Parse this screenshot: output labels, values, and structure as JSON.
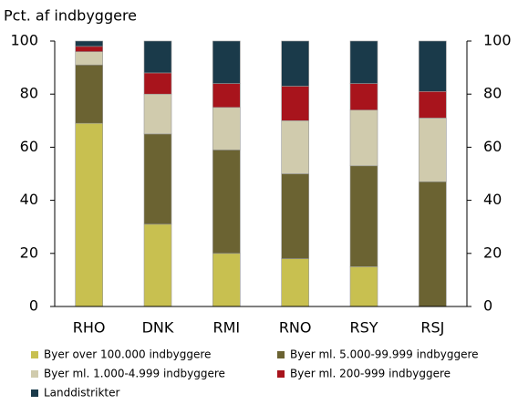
{
  "chart_data": {
    "type": "stacked_bar",
    "y_axis_label": "Pct. af indbyggere",
    "categories": [
      "RHO",
      "DNK",
      "RMI",
      "RNO",
      "RSY",
      "RSJ"
    ],
    "series": [
      {
        "name": "Byer over 100.000 indbyggere",
        "color": "#c8c050",
        "values": [
          69,
          31,
          20,
          18,
          15,
          0
        ]
      },
      {
        "name": "Byer ml. 5.000-99.999 indbyggere",
        "color": "#6b6332",
        "values": [
          22,
          34,
          39,
          32,
          38,
          47
        ]
      },
      {
        "name": "Byer ml. 1.000-4.999 indbyggere",
        "color": "#d0cbad",
        "values": [
          5,
          15,
          16,
          20,
          21,
          24
        ]
      },
      {
        "name": "Byer ml. 200-999 indbyggere",
        "color": "#a8141c",
        "values": [
          2,
          8,
          9,
          13,
          10,
          10
        ]
      },
      {
        "name": "Landdistrikter",
        "color": "#1a3a4a",
        "values": [
          2,
          12,
          16,
          17,
          16,
          19
        ]
      }
    ],
    "ylim": [
      0,
      100
    ],
    "yticks": [
      0,
      20,
      40,
      60,
      80,
      100
    ]
  }
}
